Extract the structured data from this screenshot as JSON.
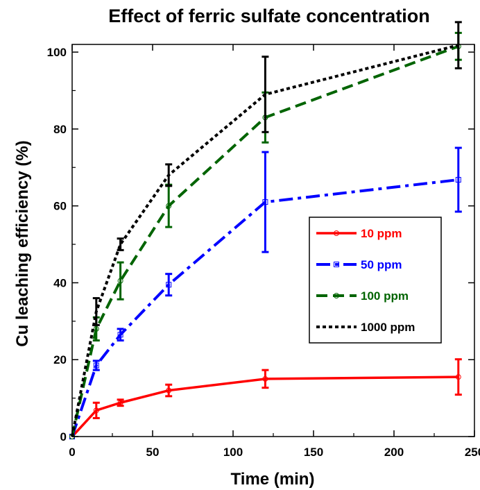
{
  "chart_data": {
    "type": "line",
    "title": "Effect of ferric sulfate concentration",
    "xlabel": "Time (min)",
    "ylabel": "Cu leaching efficiency (%)",
    "xlim": [
      0,
      250
    ],
    "ylim": [
      0,
      102
    ],
    "x_ticks": [
      0,
      50,
      100,
      150,
      200,
      250
    ],
    "y_ticks": [
      0,
      20,
      40,
      60,
      80,
      100
    ],
    "grid": false,
    "legend_position": "center-right",
    "series": [
      {
        "name": "10 ppm",
        "color": "#ff0000",
        "line_style": "solid",
        "marker": "circle",
        "x": [
          0,
          15,
          30,
          60,
          120,
          240
        ],
        "y": [
          0,
          6.8,
          8.8,
          12.0,
          15.0,
          15.5
        ],
        "error": [
          0,
          2.0,
          0.8,
          1.5,
          2.3,
          4.6
        ]
      },
      {
        "name": "50 ppm",
        "color": "#0000ff",
        "line_style": "dash-dot",
        "marker": "square",
        "x": [
          0,
          15,
          30,
          60,
          120,
          240
        ],
        "y": [
          0,
          18.5,
          26.5,
          39.5,
          61.0,
          66.8
        ],
        "error": [
          0,
          1.2,
          1.5,
          2.8,
          13.0,
          8.3
        ]
      },
      {
        "name": "100 ppm",
        "color": "#006400",
        "line_style": "dashed",
        "marker": "circle",
        "x": [
          0,
          15,
          30,
          60,
          120,
          240
        ],
        "y": [
          0,
          28.0,
          40.5,
          60.0,
          83.0,
          101.5
        ],
        "error": [
          0,
          3.0,
          4.8,
          5.5,
          6.5,
          3.5
        ]
      },
      {
        "name": "1000 ppm",
        "color": "#000000",
        "line_style": "dotted",
        "marker": "none",
        "x": [
          0,
          15,
          30,
          60,
          120,
          240
        ],
        "y": [
          0,
          32.5,
          50.0,
          68.0,
          89.0,
          101.8
        ],
        "error": [
          0,
          3.5,
          1.5,
          2.8,
          9.8,
          6.0
        ]
      }
    ]
  }
}
